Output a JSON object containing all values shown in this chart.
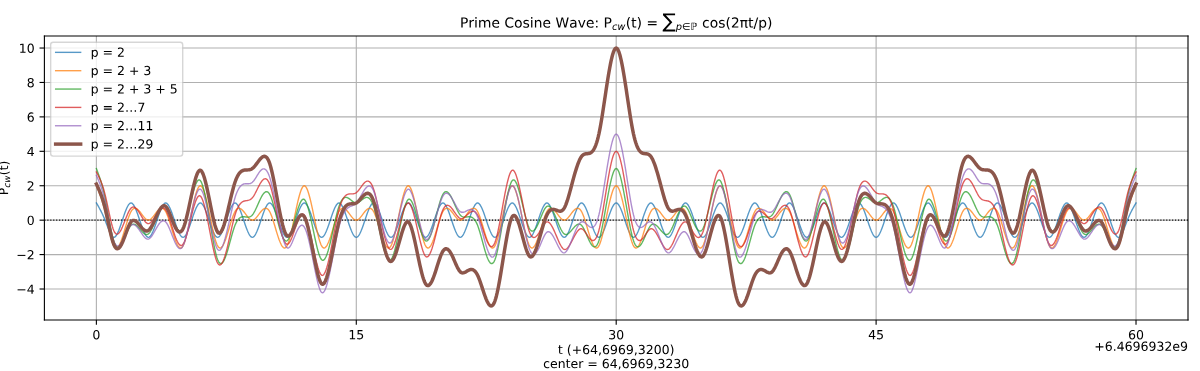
{
  "chart_data": {
    "type": "line",
    "title": "Prime Cosine Wave: P$_{cw}$(t) = ∑$_{p∈ℙ}$ cos(2πt/p)",
    "xlabel": "t (+64,6969,3200)\ncenter = 64,6969,3230",
    "ylabel": "P$_{cw}$(t)",
    "annotations": [
      "+6.4696932e9"
    ],
    "x": [
      0,
      0.5,
      1,
      1.5,
      2,
      2.5,
      3,
      3.5,
      4,
      4.5,
      5,
      5.5,
      6,
      6.5,
      7,
      7.5,
      8,
      8.5,
      9,
      9.5,
      10,
      10.5,
      11,
      11.5,
      12,
      12.5,
      13,
      13.5,
      14,
      14.5,
      15,
      15.5,
      16,
      16.5,
      17,
      17.5,
      18,
      18.5,
      19,
      19.5,
      20,
      20.5,
      21,
      21.5,
      22,
      22.5,
      23,
      23.5,
      24,
      24.5,
      25,
      25.5,
      26,
      26.5,
      27,
      27.5,
      28,
      28.5,
      29,
      29.5,
      30,
      30.5,
      31,
      31.5,
      32,
      32.5,
      33,
      33.5,
      34,
      34.5,
      35,
      35.5,
      36,
      36.5,
      37,
      37.5,
      38,
      38.5,
      39,
      39.5,
      40,
      40.5,
      41,
      41.5,
      42,
      42.5,
      43,
      43.5,
      44,
      44.5,
      45,
      45.5,
      46,
      46.5,
      47,
      47.5,
      48,
      48.5,
      49,
      49.5,
      50,
      50.5,
      51,
      51.5,
      52,
      52.5,
      53,
      53.5,
      54,
      54.5,
      55,
      55.5,
      56,
      56.5,
      57,
      57.5,
      58,
      58.5,
      59,
      59.5,
      60
    ],
    "series": [
      {
        "name": "p = 2",
        "color": "#1f77b4",
        "values": [
          1,
          0,
          -1,
          0,
          1,
          0,
          -1,
          0,
          1,
          0,
          -1,
          0,
          1,
          0,
          -1,
          0,
          1,
          0,
          -1,
          0,
          1,
          0,
          -1,
          0,
          1,
          0,
          -1,
          0,
          1,
          0,
          -1,
          0,
          1,
          0,
          -1,
          0,
          1,
          0,
          -1,
          0,
          1,
          0,
          -1,
          0,
          1,
          0,
          -1,
          0,
          1,
          0,
          -1,
          0,
          1,
          0,
          -1,
          0,
          1,
          0,
          -1,
          0,
          1,
          0,
          -1,
          0,
          1,
          0,
          -1,
          0,
          1,
          0,
          -1,
          0,
          1,
          0,
          -1,
          0,
          1,
          0,
          -1,
          0,
          1,
          0,
          -1,
          0,
          1,
          0,
          -1,
          0,
          1,
          0,
          -1,
          0,
          1,
          0,
          -1,
          0,
          1,
          0,
          -1,
          0,
          1,
          0,
          -1,
          0,
          1,
          0,
          -1,
          0,
          1,
          0,
          -1,
          0,
          1,
          0,
          -1,
          0,
          1,
          0,
          -1,
          0,
          1
        ]
      },
      {
        "name": "p = 2 + 3",
        "color": "#ff7f0e",
        "values": [
          2,
          0.5,
          -1.5,
          -1,
          0.5,
          0.5,
          0,
          0.5,
          0.5,
          -1,
          -1.5,
          0.5,
          2,
          0.5,
          -1.5,
          -1,
          0.5,
          0.5,
          0,
          0.5,
          0.5,
          -1,
          -1.5,
          0.5,
          2,
          0.5,
          -1.5,
          -1,
          0.5,
          0.5,
          0,
          0.5,
          0.5,
          -1,
          -1.5,
          0.5,
          2,
          0.5,
          -1.5,
          -1,
          0.5,
          0.5,
          0,
          0.5,
          0.5,
          -1,
          -1.5,
          0.5,
          2,
          0.5,
          -1.5,
          -1,
          0.5,
          0.5,
          0,
          0.5,
          0.5,
          -1,
          -1.5,
          0.5,
          2,
          0.5,
          -1.5,
          -1,
          0.5,
          0.5,
          0,
          0.5,
          0.5,
          -1,
          -1.5,
          0.5,
          2,
          0.5,
          -1.5,
          -1,
          0.5,
          0.5,
          0,
          0.5,
          0.5,
          -1,
          -1.5,
          0.5,
          2,
          0.5,
          -1.5,
          -1,
          0.5,
          0.5,
          0,
          0.5,
          0.5,
          -1,
          -1.5,
          0.5,
          2,
          0.5,
          -1.5,
          -1,
          0.5,
          0.5,
          0,
          0.5,
          0.5,
          -1,
          -1.5,
          0.5,
          2,
          0.5,
          -1.5,
          -1,
          0.5,
          0.5,
          0,
          0.5,
          0.5,
          -1,
          -1.5,
          0.5,
          2
        ]
      },
      {
        "name": "p = 2 + 3 + 5",
        "color": "#2ca02c",
        "values": [
          3,
          1.3,
          -1.2,
          -1.3,
          -0.3,
          -0.5,
          -0.8,
          0.2,
          0.8,
          -0.2,
          -0.5,
          1.3,
          2.3,
          0.2,
          -2.3,
          -2,
          -0.3,
          0.2,
          0.3,
          1.3,
          1.5,
          -0.2,
          -1.2,
          0.2,
          1.2,
          -0.5,
          -2.3,
          -1.3,
          0.8,
          1.3,
          1,
          1.3,
          0.8,
          -1.3,
          -2.3,
          -0.5,
          1.2,
          0.2,
          -1.2,
          -0.2,
          1.5,
          1.3,
          0.3,
          0.2,
          -0.3,
          -2,
          -2.3,
          0.2,
          2.3,
          1.3,
          -0.5,
          -0.2,
          0.8,
          0.2,
          -0.8,
          -0.5,
          -0.3,
          -1.3,
          -1.2,
          1.3,
          3,
          1.3,
          -1.2,
          -1.3,
          -0.3,
          -0.5,
          -0.8,
          0.2,
          0.8,
          -0.2,
          -0.5,
          1.3,
          2.3,
          0.2,
          -2.3,
          -2,
          -0.3,
          0.2,
          0.3,
          1.3,
          1.5,
          -0.2,
          -1.2,
          0.2,
          1.2,
          -0.5,
          -2.3,
          -1.3,
          0.8,
          1.3,
          1,
          1.3,
          0.8,
          -1.3,
          -2.3,
          -0.5,
          1.2,
          0.2,
          -1.2,
          -0.2,
          1.5,
          1.3,
          0.3,
          0.2,
          -0.3,
          -2,
          -2.3,
          0.2,
          2.3,
          1.3,
          -0.5,
          -0.2,
          0.8,
          0.2,
          -0.8,
          -0.5,
          -0.3,
          -1.3,
          -1.2,
          1.3,
          3
        ]
      },
      {
        "name": "p = 2…7",
        "color": "#d62728",
        "values": [
          2.8,
          1.5,
          -0.6,
          -0.4,
          0.7,
          0.4,
          -0.2,
          0.4,
          0.6,
          -0.8,
          -1.4,
          0.3,
          1.4,
          -0.4,
          -2.5,
          -1.8,
          0.3,
          1.1,
          1.3,
          2.2,
          2.1,
          0,
          -1.4,
          -0.4,
          0.3,
          -1.5,
          -3.2,
          -1.9,
          0.6,
          1.5,
          1.6,
          2.2,
          1.8,
          -0.4,
          -1.7,
          -0.3,
          1,
          -0.4,
          -2.1,
          -1.2,
          0.6,
          0.7,
          0.1,
          0.4,
          0.3,
          -1.1,
          -1.3,
          1.1,
          2.9,
          1.5,
          -0.7,
          -0.8,
          -0.1,
          -0.8,
          -1.7,
          -1.1,
          -0.5,
          -1.1,
          -0.6,
          2.2,
          4,
          2.2,
          -0.6,
          -1.1,
          -0.5,
          -1.1,
          -1.7,
          -0.8,
          -0.1,
          -0.8,
          -0.7,
          1.5,
          2.9,
          1.1,
          -1.3,
          -1.1,
          0.3,
          0.4,
          0.1,
          0.7,
          0.6,
          -1.2,
          -2.1,
          -0.4,
          1,
          -0.3,
          -1.7,
          -0.4,
          1.8,
          2.2,
          1.6,
          1.5,
          0.6,
          -1.9,
          -3.2,
          -1.5,
          0.3,
          -0.4,
          -1.4,
          0,
          2.1,
          2.2,
          1.3,
          1.1,
          0.3,
          -1.8,
          -2.5,
          -0.4,
          1.4,
          0.3,
          -1.4,
          -0.8,
          0.6,
          0.4,
          -0.2,
          0.4,
          0.7,
          -0.4,
          -0.6,
          1.5,
          2.8
        ]
      },
      {
        "name": "p = 2…11",
        "color": "#9467bd",
        "values": [
          2.6,
          1.1,
          -1.2,
          -1.2,
          -0.3,
          -0.6,
          -1.1,
          -0.4,
          -0.1,
          -1.2,
          -1.5,
          0.5,
          1.8,
          0.2,
          -1.7,
          -0.8,
          1.3,
          2.1,
          2.2,
          2.9,
          2.5,
          0.2,
          -1.6,
          -0.8,
          -0.4,
          -2.3,
          -4.2,
          -2.9,
          -0.4,
          0.7,
          1,
          1.8,
          1.7,
          -0.3,
          -1.3,
          0.4,
          1.8,
          0.5,
          -1.1,
          -0.2,
          1.4,
          1.3,
          0.5,
          0.6,
          0.2,
          -1.5,
          -2,
          0.3,
          2,
          0.5,
          -1.7,
          -1.7,
          -0.7,
          -1.2,
          -1.9,
          -1,
          -0.1,
          -0.4,
          0.3,
          3.2,
          5,
          3.2,
          0.3,
          -0.4,
          -0.1,
          -1,
          -1.9,
          -1.2,
          -0.7,
          -1.7,
          -1.7,
          0.5,
          2,
          0.3,
          -2,
          -1.5,
          0.2,
          0.6,
          0.5,
          1.3,
          1.4,
          -0.2,
          -1.1,
          0.5,
          1.8,
          0.4,
          -1.3,
          -0.3,
          1.7,
          1.8,
          1,
          0.7,
          -0.4,
          -2.9,
          -4.2,
          -2.3,
          -0.4,
          -0.8,
          -1.6,
          0.2,
          2.5,
          2.9,
          2.2,
          2.1,
          1.3,
          -0.8,
          -1.7,
          0.2,
          1.8,
          0.5,
          -1.5,
          -1.2,
          -0.1,
          -0.4,
          -1.1,
          -0.6,
          -0.3,
          -1.2,
          -1.2,
          1.1,
          2.6
        ]
      },
      {
        "name": "p = 2…29",
        "color": "#8c564b",
        "values": [
          2.1,
          0.7,
          -1.4,
          -1.3,
          -0.1,
          -0.3,
          -0.6,
          0.3,
          0.8,
          -0.3,
          -0.5,
          1.5,
          2.9,
          1.3,
          -0.7,
          0.2,
          2.2,
          2.9,
          3,
          3.6,
          3.3,
          0.9,
          -0.9,
          -0.2,
          0.2,
          -1.8,
          -3.7,
          -2.5,
          -0.1,
          0.9,
          1,
          1.5,
          1.1,
          -1.1,
          -2.4,
          -1.2,
          -0.1,
          -1.8,
          -3.7,
          -3.2,
          -1.8,
          -2,
          -3,
          -2.9,
          -3.2,
          -4.6,
          -4.7,
          -2.1,
          0.2,
          -0.6,
          -2.1,
          -1.3,
          0.3,
          0.6,
          0.7,
          2.3,
          3.7,
          3.9,
          5,
          8.1,
          10,
          8.1,
          5,
          3.9,
          3.7,
          2.3,
          0.7,
          0.6,
          0.3,
          -1.3,
          -2.1,
          -0.6,
          0.2,
          -2.1,
          -4.7,
          -4.6,
          -3.2,
          -2.9,
          -3,
          -2,
          -1.8,
          -3.2,
          -3.7,
          -1.8,
          -0.1,
          -1.2,
          -2.4,
          -1.1,
          1.1,
          1.5,
          1,
          0.9,
          -0.1,
          -2.5,
          -3.7,
          -1.8,
          0.2,
          -0.2,
          -0.9,
          0.9,
          3.3,
          3.6,
          3,
          2.9,
          2.2,
          0.2,
          -0.7,
          1.3,
          2.9,
          1.5,
          -0.5,
          -0.3,
          0.8,
          0.3,
          -0.6,
          -0.3,
          -0.1,
          -1.3,
          -1.4,
          0.7,
          2.1
        ]
      }
    ],
    "xlim": [
      -3,
      63
    ],
    "xticks": [
      0,
      15,
      30,
      45,
      60
    ],
    "ylim": [
      -5.8,
      10.7
    ],
    "yticks": [
      -4,
      -2,
      0,
      2,
      4,
      6,
      8,
      10
    ],
    "ref_lines": [
      {
        "axis": "y",
        "value": 0,
        "color": "#000000",
        "line_style": "dotted"
      }
    ],
    "grid": true,
    "legend": "top left",
    "line_style": "solid",
    "marker": "none"
  }
}
